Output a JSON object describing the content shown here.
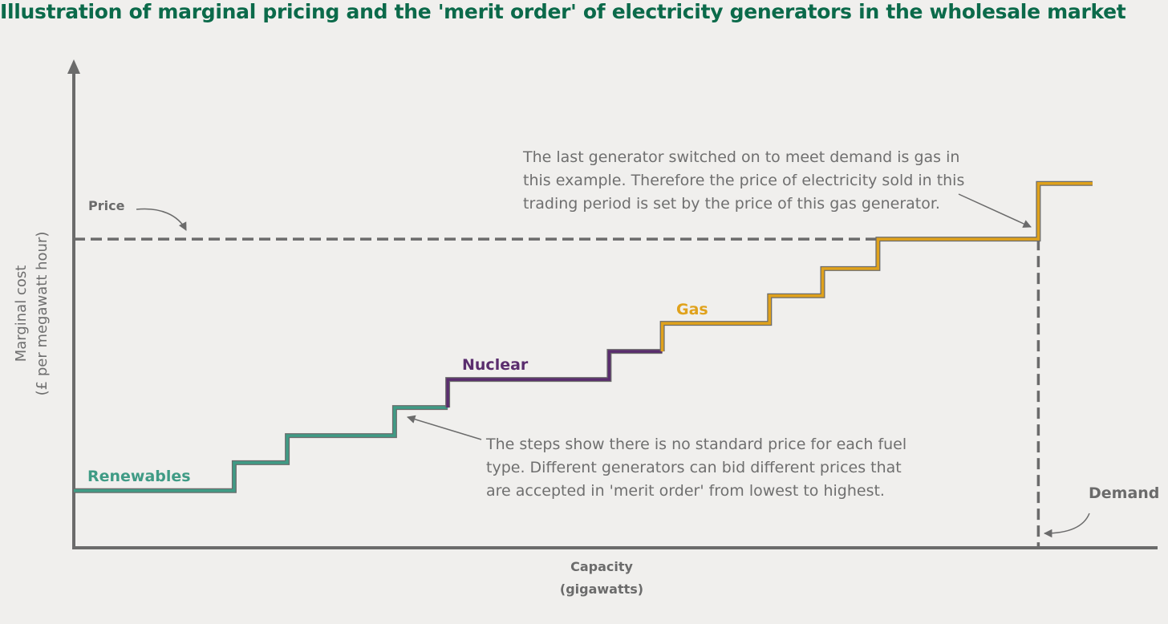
{
  "title": "Illustration of marginal pricing and the 'merit order' of electricity generators in the wholesale market",
  "chart_data": {
    "type": "line",
    "subtype": "step",
    "xlabel": [
      "Capacity",
      "(gigawatts)"
    ],
    "ylabel": [
      "Marginal cost",
      "(£ per megawatt hour)"
    ],
    "xlim": [
      0,
      100
    ],
    "ylim": [
      0,
      100
    ],
    "units_note": "arbitrary relative units (axes have no ticks)",
    "series": [
      {
        "name": "Renewables",
        "color": "#3f9b85",
        "points": [
          [
            0,
            12.0
          ],
          [
            14.8,
            12.0
          ],
          [
            14.8,
            17.9
          ],
          [
            19.7,
            17.9
          ],
          [
            19.7,
            23.6
          ],
          [
            29.6,
            23.6
          ],
          [
            29.6,
            29.5
          ],
          [
            34.5,
            29.5
          ]
        ]
      },
      {
        "name": "Nuclear",
        "color": "#5a2d6e",
        "points": [
          [
            34.5,
            29.5
          ],
          [
            34.5,
            35.4
          ],
          [
            49.4,
            35.4
          ],
          [
            49.4,
            41.3
          ],
          [
            54.3,
            41.3
          ]
        ]
      },
      {
        "name": "Gas",
        "color": "#e0a21c",
        "points": [
          [
            54.3,
            41.3
          ],
          [
            54.3,
            47.2
          ],
          [
            64.2,
            47.2
          ],
          [
            64.2,
            53.0
          ],
          [
            69.1,
            53.0
          ],
          [
            69.1,
            58.7
          ],
          [
            74.2,
            58.7
          ],
          [
            74.2,
            64.9
          ],
          [
            89.0,
            64.9
          ],
          [
            89.0,
            76.6
          ],
          [
            94.0,
            76.6
          ]
        ]
      }
    ],
    "price_line": {
      "label": "Price",
      "y": 64.9
    },
    "demand_line": {
      "label": "Demand",
      "x": 89.0
    },
    "annotations": [
      "The last generator switched on to meet demand is gas in\nthis example. Therefore the price of electricity sold in this\ntrading period is set by the price of this gas generator.",
      "The steps show there is no standard price for each fuel\ntype. Different generators can bid different prices that\nare accepted in 'merit order' from lowest to highest."
    ]
  }
}
